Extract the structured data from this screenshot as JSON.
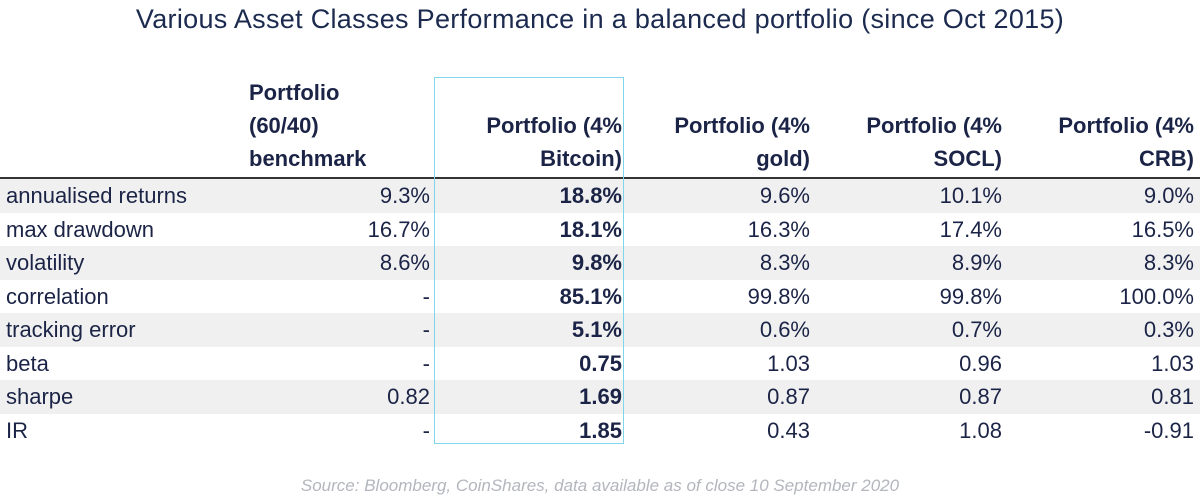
{
  "title": "Various Asset Classes Performance in a balanced portfolio (since Oct 2015)",
  "highlight_color": "#7fd6ea",
  "columns": [
    "Portfolio (60/40) benchmark",
    "Portfolio (4% Bitcoin)",
    "Portfolio (4% gold)",
    "Portfolio (4% SOCL)",
    "Portfolio (4% CRB)"
  ],
  "header_lines": {
    "c1": [
      "Portfolio",
      "(60/40)",
      "benchmark"
    ],
    "c2": [
      "Portfolio (4%",
      "Bitcoin)"
    ],
    "c3": [
      "Portfolio (4%",
      "gold)"
    ],
    "c4": [
      "Portfolio (4%",
      "SOCL)"
    ],
    "c5": [
      "Portfolio (4%",
      "CRB)"
    ]
  },
  "rows": [
    {
      "label": "annualised returns",
      "values": [
        "9.3%",
        "18.8%",
        "9.6%",
        "10.1%",
        "9.0%"
      ]
    },
    {
      "label": "max drawdown",
      "values": [
        "16.7%",
        "18.1%",
        "16.3%",
        "17.4%",
        "16.5%"
      ]
    },
    {
      "label": "volatility",
      "values": [
        "8.6%",
        "9.8%",
        "8.3%",
        "8.9%",
        "8.3%"
      ]
    },
    {
      "label": "correlation",
      "values": [
        "-",
        "85.1%",
        "99.8%",
        "99.8%",
        "100.0%"
      ]
    },
    {
      "label": "tracking error",
      "values": [
        "-",
        "5.1%",
        "0.6%",
        "0.7%",
        "0.3%"
      ]
    },
    {
      "label": "beta",
      "values": [
        "-",
        "0.75",
        "1.03",
        "0.96",
        "1.03"
      ]
    },
    {
      "label": "sharpe",
      "values": [
        "0.82",
        "1.69",
        "0.87",
        "0.87",
        "0.81"
      ]
    },
    {
      "label": "IR",
      "values": [
        "-",
        "1.85",
        "0.43",
        "1.08",
        "-0.91"
      ]
    }
  ],
  "source": "Source: Bloomberg, CoinShares, data available as of close 10 September 2020"
}
